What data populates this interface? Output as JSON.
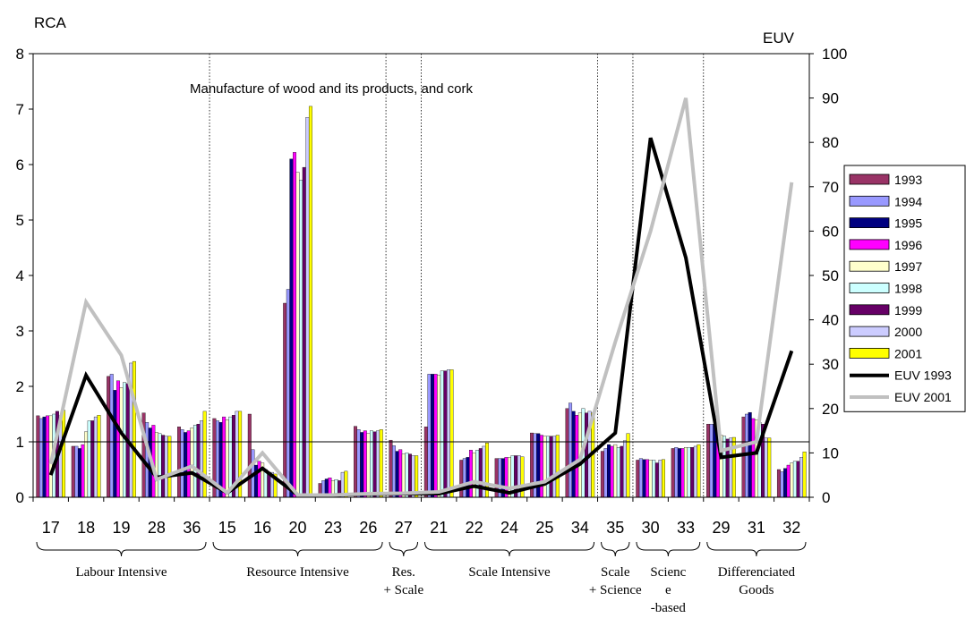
{
  "chart_data": {
    "type": "bar",
    "title": "Manufacture of wood and its products, and cork",
    "ylabel_left": "RCA",
    "ylabel_right": "EUV",
    "ylim_left": [
      0,
      8
    ],
    "ylim_right": [
      0,
      100
    ],
    "yticks_left": [
      "0",
      "1",
      "2",
      "3",
      "4",
      "5",
      "6",
      "7",
      "8"
    ],
    "yticks_right": [
      "0",
      "10",
      "20",
      "30",
      "40",
      "50",
      "60",
      "70",
      "80",
      "90",
      "100"
    ],
    "reference_line": 1,
    "categories": [
      "17",
      "18",
      "19",
      "28",
      "36",
      "15",
      "16",
      "20",
      "23",
      "26",
      "27",
      "21",
      "22",
      "24",
      "25",
      "34",
      "35",
      "30",
      "33",
      "29",
      "31",
      "32"
    ],
    "groups": [
      {
        "label": "Labour Intensive",
        "lines": [
          "Labour Intensive"
        ],
        "start": 0,
        "end": 4
      },
      {
        "label": "Resource Intensive",
        "lines": [
          "Resource Intensive"
        ],
        "start": 5,
        "end": 9
      },
      {
        "label": "Res. + Scale",
        "lines": [
          "Res.",
          "+ Scale"
        ],
        "start": 10,
        "end": 10
      },
      {
        "label": "Scale Intensive",
        "lines": [
          "Scale Intensive"
        ],
        "start": 11,
        "end": 15
      },
      {
        "label": "Scale + Science",
        "lines": [
          "Scale",
          "+ Science"
        ],
        "start": 16,
        "end": 16
      },
      {
        "label": "Science-based",
        "lines": [
          "Scienc",
          "e",
          "-based"
        ],
        "start": 17,
        "end": 18
      },
      {
        "label": "Differenciated Goods",
        "lines": [
          "Differenciated",
          "Goods"
        ],
        "start": 19,
        "end": 21
      }
    ],
    "bar_series": [
      {
        "name": "1993",
        "color": "#993366",
        "values": [
          1.47,
          0.92,
          2.18,
          1.52,
          1.27,
          1.42,
          1.5,
          3.5,
          0.25,
          1.28,
          1.03,
          1.27,
          0.67,
          0.7,
          1.16,
          1.6,
          0.83,
          0.67,
          0.88,
          1.32,
          1.45,
          0.5
        ]
      },
      {
        "name": "1994",
        "color": "#9999ff",
        "values": [
          1.42,
          0.92,
          2.22,
          1.35,
          1.22,
          1.38,
          0.86,
          3.75,
          0.3,
          1.22,
          0.93,
          2.22,
          0.7,
          0.7,
          1.15,
          1.7,
          0.88,
          0.7,
          0.9,
          1.32,
          1.5,
          0.46
        ]
      },
      {
        "name": "1995",
        "color": "#000080",
        "values": [
          1.45,
          0.88,
          1.93,
          1.25,
          1.17,
          1.35,
          0.58,
          6.1,
          0.33,
          1.17,
          0.83,
          2.22,
          0.72,
          0.7,
          1.15,
          1.55,
          0.95,
          0.68,
          0.88,
          1.32,
          1.53,
          0.52
        ]
      },
      {
        "name": "1996",
        "color": "#ff00ff",
        "values": [
          1.47,
          0.95,
          2.1,
          1.3,
          1.2,
          1.45,
          0.65,
          6.22,
          0.35,
          1.2,
          0.86,
          2.22,
          0.85,
          0.72,
          1.12,
          1.48,
          0.92,
          0.68,
          0.88,
          1.15,
          1.42,
          0.58
        ]
      },
      {
        "name": "1997",
        "color": "#ffffcc",
        "values": [
          1.47,
          1.18,
          1.98,
          1.17,
          1.25,
          1.4,
          0.62,
          5.86,
          0.3,
          1.15,
          0.78,
          2.2,
          0.8,
          0.72,
          1.1,
          1.52,
          0.95,
          0.67,
          0.9,
          1.12,
          1.4,
          0.62
        ]
      },
      {
        "name": "1998",
        "color": "#ccffff",
        "values": [
          1.5,
          1.38,
          2.07,
          1.15,
          1.3,
          1.45,
          0.5,
          5.72,
          0.32,
          1.2,
          0.8,
          2.28,
          0.85,
          0.75,
          1.1,
          1.6,
          0.9,
          0.67,
          0.9,
          1.1,
          1.35,
          0.65
        ]
      },
      {
        "name": "1999",
        "color": "#660066",
        "values": [
          1.55,
          1.38,
          2.05,
          1.12,
          1.32,
          1.48,
          0.42,
          5.95,
          0.3,
          1.18,
          0.78,
          2.28,
          0.88,
          0.75,
          1.1,
          1.52,
          0.92,
          0.62,
          0.9,
          1.05,
          1.32,
          0.65
        ]
      },
      {
        "name": "2000",
        "color": "#ccccff",
        "values": [
          1.47,
          1.45,
          2.42,
          1.1,
          1.38,
          1.55,
          0.45,
          6.85,
          0.45,
          1.2,
          0.75,
          2.3,
          0.92,
          0.75,
          1.1,
          1.55,
          1.02,
          0.67,
          0.92,
          1.07,
          1.07,
          0.72
        ]
      },
      {
        "name": "2001",
        "color": "#ffff00",
        "values": [
          1.57,
          1.48,
          2.45,
          1.1,
          1.55,
          1.55,
          0.42,
          7.05,
          0.47,
          1.22,
          0.75,
          2.3,
          0.98,
          0.73,
          1.12,
          1.52,
          1.15,
          0.68,
          0.95,
          1.08,
          1.07,
          0.82
        ]
      }
    ],
    "line_series": [
      {
        "name": "EUV 1993",
        "color": "#000000",
        "values": [
          5,
          27.5,
          14.5,
          4.5,
          5.5,
          1,
          6.5,
          0.5,
          0.5,
          0.7,
          0.8,
          0.8,
          2.5,
          1,
          3,
          7.5,
          14.5,
          81,
          54,
          9,
          10,
          33
        ]
      },
      {
        "name": "EUV 2001",
        "color": "#c0c0c0",
        "values": [
          7.5,
          44,
          32,
          4,
          7,
          1,
          10,
          0.5,
          0.5,
          0.8,
          0.9,
          1.2,
          3.5,
          2,
          3.5,
          8.5,
          35,
          60,
          90,
          10.5,
          12.5,
          71
        ]
      }
    ],
    "legend_position": "right"
  }
}
